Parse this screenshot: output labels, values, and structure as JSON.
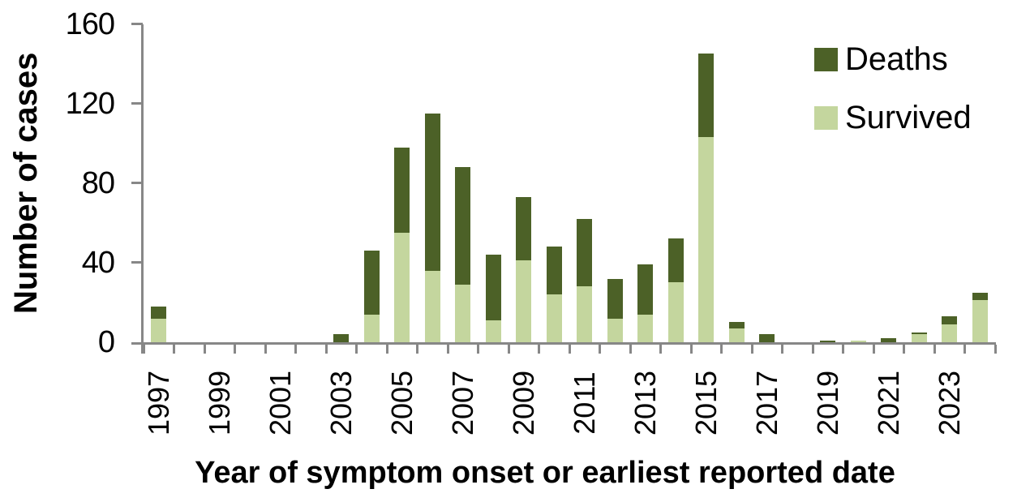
{
  "figure": {
    "y_axis_title": "Number of cases",
    "x_axis_title": "Year of symptom onset or earliest reported date",
    "legend": [
      {
        "label": "Deaths",
        "color": "#4C6127"
      },
      {
        "label": "Survived",
        "color": "#C4D69E"
      }
    ],
    "axis_color": "#878787",
    "background_color": "#FFFFFF"
  },
  "chart_data": {
    "type": "bar",
    "stacked": true,
    "title": "",
    "xlabel": "Year of symptom onset or earliest reported date",
    "ylabel": "Number of cases",
    "ylim": [
      0,
      160
    ],
    "yticks": [
      0,
      40,
      80,
      120,
      160
    ],
    "grid": false,
    "legend_position": "upper right",
    "categories": [
      1997,
      1998,
      1999,
      2000,
      2001,
      2002,
      2003,
      2004,
      2005,
      2006,
      2007,
      2008,
      2009,
      2010,
      2011,
      2012,
      2013,
      2014,
      2015,
      2016,
      2017,
      2018,
      2019,
      2020,
      2021,
      2022,
      2023,
      2024
    ],
    "xtick_labels_shown": [
      "1997",
      "1999",
      "2001",
      "2003",
      "2005",
      "2007",
      "2009",
      "2011",
      "2013",
      "2015",
      "2017",
      "2019",
      "2021",
      "2023"
    ],
    "series": [
      {
        "name": "Survived",
        "color": "#C4D69E",
        "values": [
          12,
          0,
          0,
          0,
          0,
          0,
          0,
          14,
          55,
          36,
          29,
          11,
          41,
          24,
          28,
          12,
          14,
          30,
          103,
          7,
          0,
          0,
          0,
          1,
          0,
          4,
          9,
          21
        ]
      },
      {
        "name": "Deaths",
        "color": "#4C6127",
        "values": [
          6,
          0,
          0,
          0,
          0,
          0,
          4,
          32,
          43,
          79,
          59,
          33,
          32,
          24,
          34,
          20,
          25,
          22,
          42,
          3,
          4,
          0,
          1,
          0,
          2,
          1,
          4,
          4
        ]
      }
    ]
  }
}
